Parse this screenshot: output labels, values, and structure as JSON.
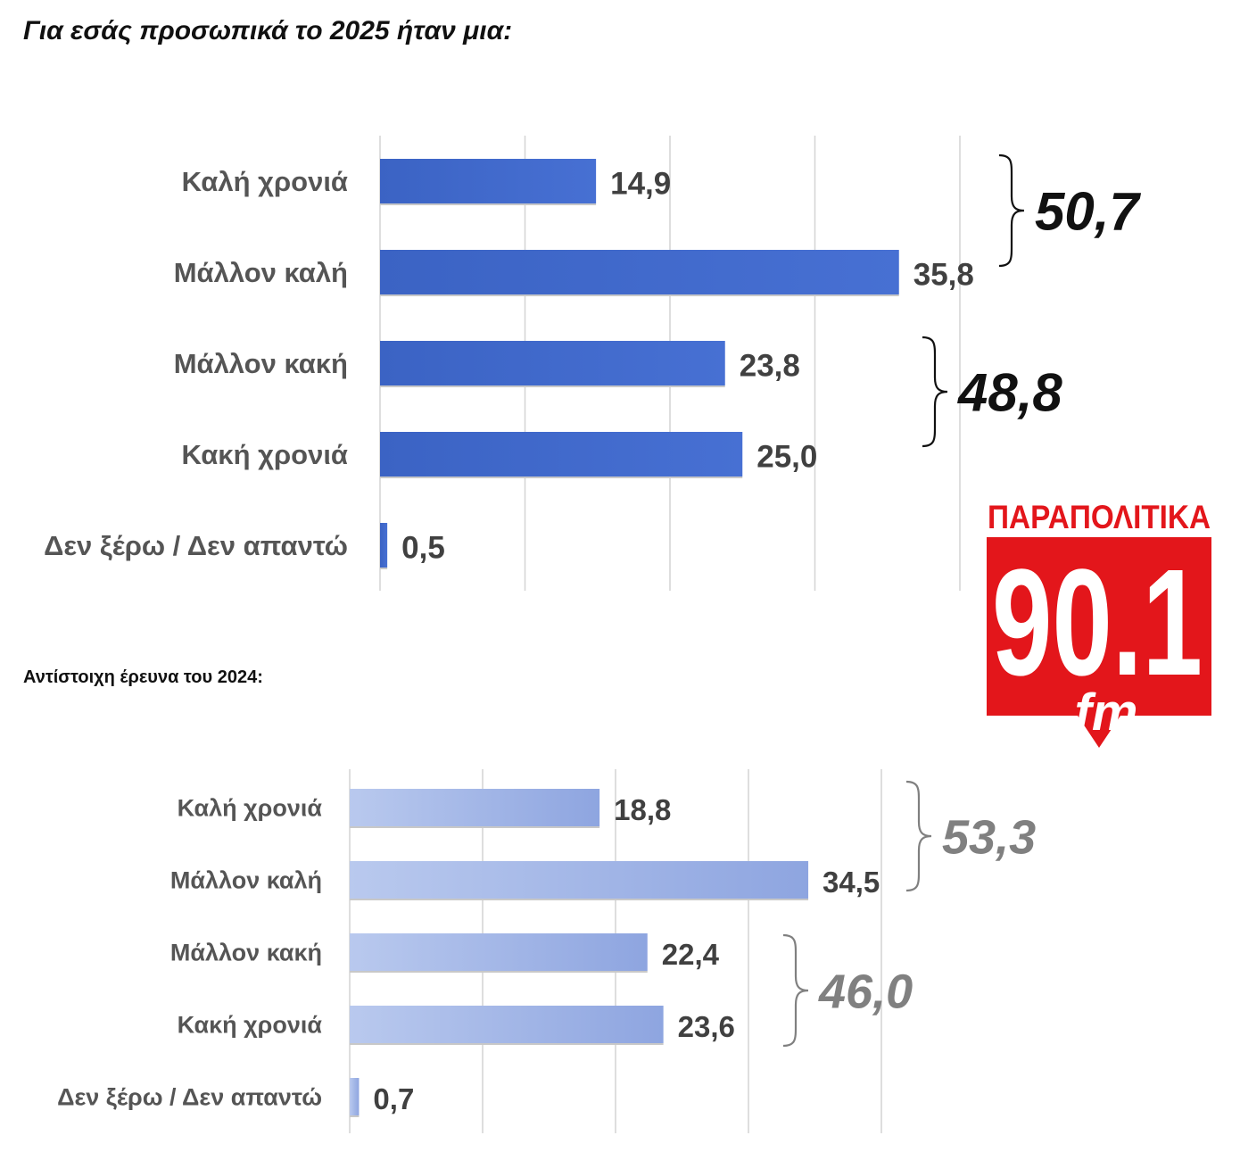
{
  "charts": {
    "current": {
      "title": "Για εσάς προσωπικά το 2025 ήταν μια:",
      "sums": [
        "50,7",
        "48,8"
      ]
    },
    "previous": {
      "title": "Αντίστοιχη έρευνα του 2024:",
      "sums": [
        "53,3",
        "46,0"
      ]
    }
  },
  "logo": {
    "top_text": "ΠΑΡΑΠΟΛΙΤΙΚΑ",
    "number": "90.1",
    "suffix": "fm",
    "red": "#e3161b"
  },
  "chart_data": [
    {
      "type": "bar",
      "orientation": "horizontal",
      "title": "Για εσάς προσωπικά το 2025 ήταν μια:",
      "categories": [
        "Καλή χρονιά",
        "Μάλλον καλή",
        "Μάλλον κακή",
        "Κακή χρονιά",
        "Δεν ξέρω / Δεν απαντώ"
      ],
      "values": [
        14.9,
        35.8,
        23.8,
        25.0,
        0.5
      ],
      "value_labels": [
        "14,9",
        "35,8",
        "23,8",
        "25,0",
        "0,5"
      ],
      "group_totals": [
        {
          "categories": [
            "Καλή χρονιά",
            "Μάλλον καλή"
          ],
          "label": "50,7"
        },
        {
          "categories": [
            "Μάλλον κακή",
            "Κακή χρονιά"
          ],
          "label": "48,8"
        }
      ],
      "xlim": [
        0,
        40
      ],
      "grid": true,
      "bar_color": "#3f66c6"
    },
    {
      "type": "bar",
      "orientation": "horizontal",
      "title": "Αντίστοιχη έρευνα του 2024:",
      "categories": [
        "Καλή χρονιά",
        "Μάλλον καλή",
        "Μάλλον κακή",
        "Κακή χρονιά",
        "Δεν ξέρω / Δεν απαντώ"
      ],
      "values": [
        18.8,
        34.5,
        22.4,
        23.6,
        0.7
      ],
      "value_labels": [
        "18,8",
        "34,5",
        "22,4",
        "23,6",
        "0,7"
      ],
      "group_totals": [
        {
          "categories": [
            "Καλή χρονιά",
            "Μάλλον καλή"
          ],
          "label": "53,3"
        },
        {
          "categories": [
            "Μάλλον κακή",
            "Κακή χρονιά"
          ],
          "label": "46,0"
        }
      ],
      "xlim": [
        0,
        40
      ],
      "grid": true,
      "bar_color": "#9fb4e6"
    }
  ]
}
